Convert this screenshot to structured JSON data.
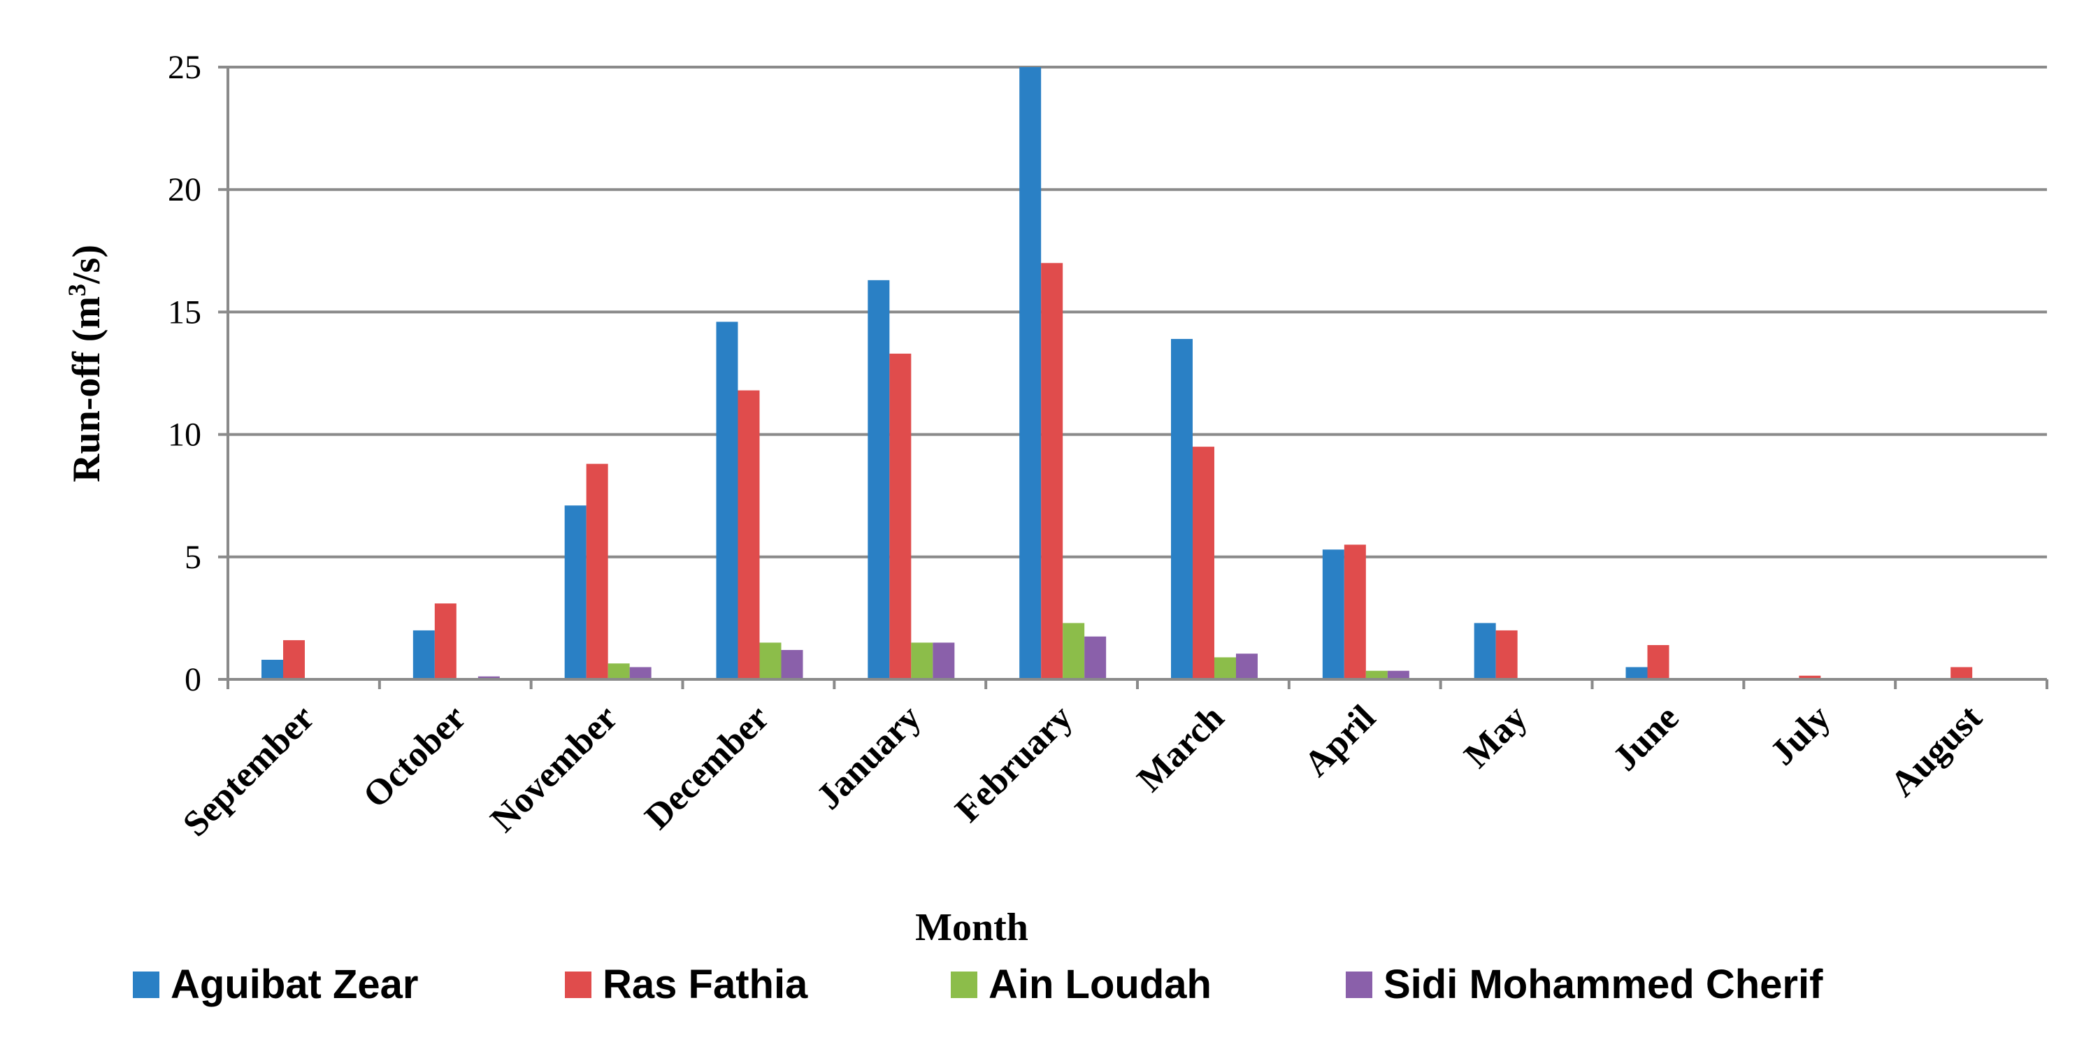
{
  "chart_data": {
    "type": "bar",
    "title": "",
    "xlabel": "Month",
    "ylabel_main": "Run-off  (m",
    "ylabel_sup": "3",
    "ylabel_end": "/s)",
    "ylim": [
      0,
      25
    ],
    "yticks": [
      "0",
      "5",
      "10",
      "15",
      "20",
      "25"
    ],
    "grid": true,
    "legend_position": "bottom",
    "categories": [
      "September",
      "October",
      "November",
      "December",
      "January",
      "February",
      "March",
      "April",
      "May",
      "June",
      "July",
      "August"
    ],
    "series": [
      {
        "name": "Aguibat Zear",
        "color": "#2a80c5",
        "values": [
          0.8,
          2.0,
          7.1,
          14.6,
          16.3,
          25.0,
          13.9,
          5.3,
          2.3,
          0.5,
          0.0,
          0.0
        ]
      },
      {
        "name": "Ras Fathia",
        "color": "#e04c4c",
        "values": [
          1.6,
          3.1,
          8.8,
          11.8,
          13.3,
          17.0,
          9.5,
          5.5,
          2.0,
          1.4,
          0.15,
          0.5
        ]
      },
      {
        "name": "Ain Loudah",
        "color": "#8cbd4a",
        "values": [
          0.0,
          0.0,
          0.65,
          1.5,
          1.5,
          2.3,
          0.9,
          0.35,
          0.0,
          0.0,
          0.0,
          0.0
        ]
      },
      {
        "name": "Sidi Mohammed Cherif",
        "color": "#8a60aa",
        "values": [
          0.0,
          0.12,
          0.5,
          1.2,
          1.5,
          1.75,
          1.05,
          0.35,
          0.0,
          0.0,
          0.0,
          0.0
        ]
      }
    ]
  }
}
